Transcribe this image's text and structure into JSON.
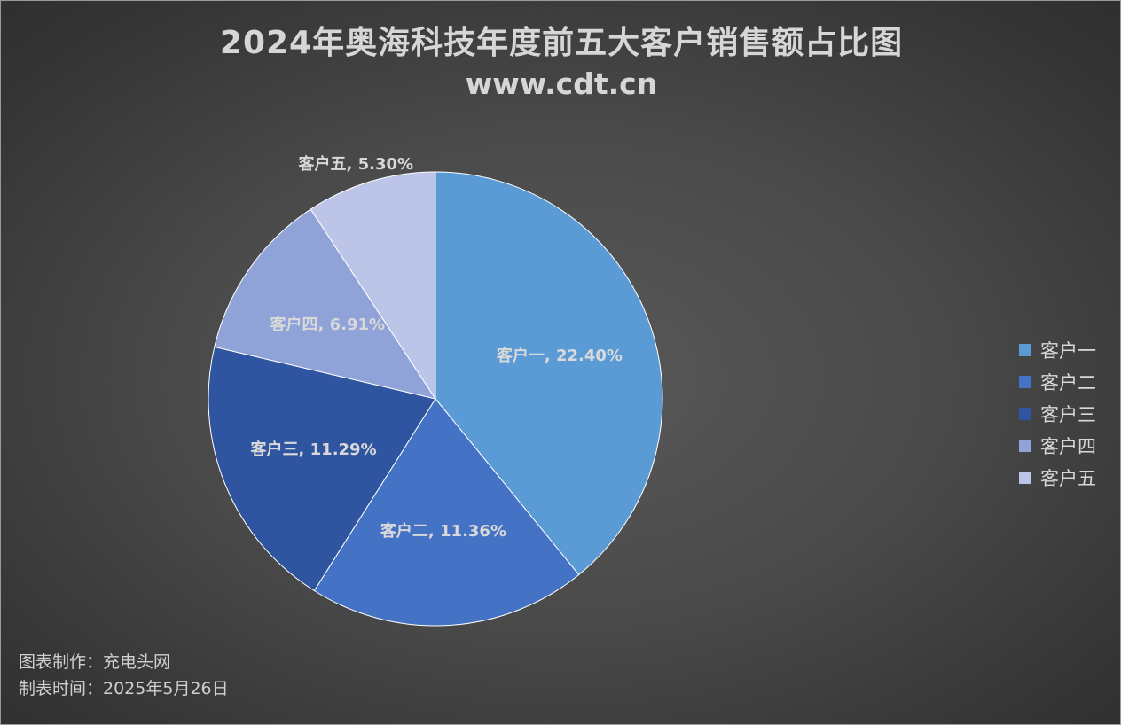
{
  "chart_data": {
    "type": "pie",
    "title": "2024年奥海科技年度前五大客户销售额占比图",
    "subtitle": "www.cdt.cn",
    "slices": [
      {
        "name": "客户一",
        "value": 22.4,
        "label": "客户一, 22.40%",
        "color": "#5b9bd5"
      },
      {
        "name": "客户二",
        "value": 11.36,
        "label": "客户二, 11.36%",
        "color": "#4472c4"
      },
      {
        "name": "客户三",
        "value": 11.29,
        "label": "客户三, 11.29%",
        "color": "#2f54a0"
      },
      {
        "name": "客户四",
        "value": 6.91,
        "label": "客户四, 6.91%",
        "color": "#8fa3d9"
      },
      {
        "name": "客户五",
        "value": 5.3,
        "label": "客户五, 5.30%",
        "color": "#bcc5e8"
      }
    ],
    "legend_position": "right"
  },
  "footer": {
    "maker": "图表制作：充电头网",
    "date": "制表时间：2025年5月26日"
  }
}
